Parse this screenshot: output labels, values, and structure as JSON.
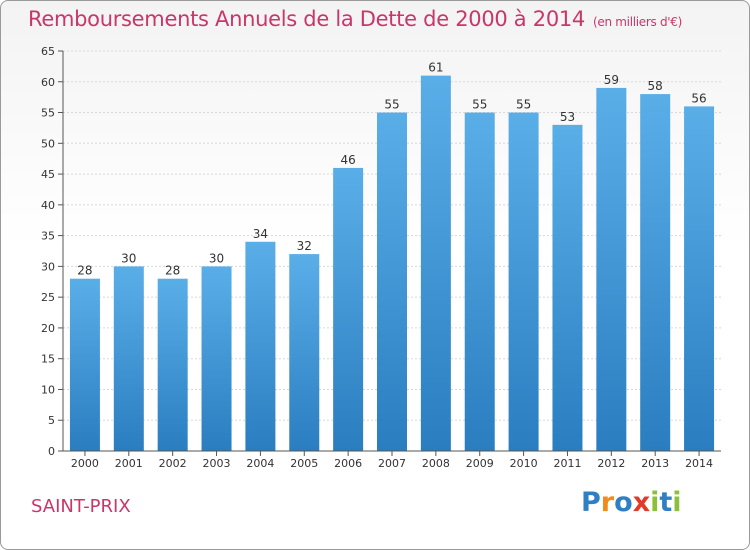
{
  "title": "Remboursements Annuels de la Dette de 2000 à 2014",
  "subtitle": "(en milliers d'€)",
  "commune": "SAINT-PRIX",
  "logo": {
    "text": "Proxiti",
    "letters": [
      "P",
      "r",
      "o",
      "x",
      "i",
      "t",
      "i"
    ],
    "colors": [
      "#2f7fc4",
      "#f08c1c",
      "#2f7fc4",
      "#e23a2a",
      "#8cbf3a",
      "#2f7fc4",
      "#8cbf3a"
    ]
  },
  "colors": {
    "title": "#c8366a",
    "bar_top": "#5aaee8",
    "bar_bottom": "#2a7ec0",
    "grid": "#d8d8d8"
  },
  "chart_data": {
    "type": "bar",
    "title": "Remboursements Annuels de la Dette de 2000 à 2014",
    "subtitle": "(en milliers d'€)",
    "categories": [
      "2000",
      "2001",
      "2002",
      "2003",
      "2004",
      "2005",
      "2006",
      "2007",
      "2008",
      "2009",
      "2010",
      "2011",
      "2012",
      "2013",
      "2014"
    ],
    "values": [
      28,
      30,
      28,
      30,
      34,
      32,
      46,
      55,
      61,
      55,
      55,
      53,
      59,
      58,
      56
    ],
    "ylim": [
      0,
      65
    ],
    "yticks": [
      0,
      5,
      10,
      15,
      20,
      25,
      30,
      35,
      40,
      45,
      50,
      55,
      60,
      65
    ],
    "grid": true,
    "data_labels": true
  }
}
